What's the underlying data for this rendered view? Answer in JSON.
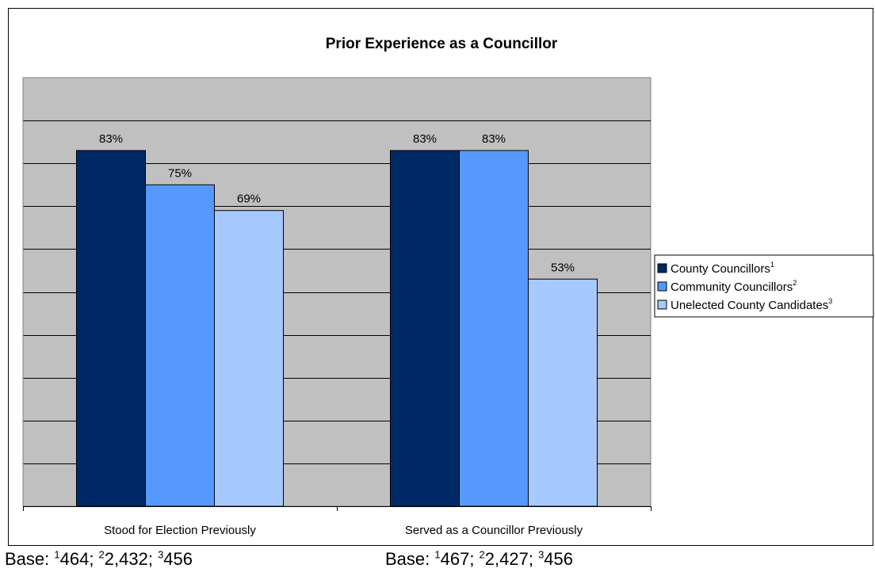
{
  "chart_data": {
    "type": "bar",
    "title": "Prior Experience as a Councillor",
    "categories": [
      "Stood for Election Previously",
      "Served as a Councillor Previously"
    ],
    "series": [
      {
        "name": "County Councillors",
        "superscript": "1",
        "color": "#002A66",
        "values": [
          83,
          83
        ],
        "labels": [
          "83%",
          "83%"
        ]
      },
      {
        "name": "Community Councillors",
        "superscript": "2",
        "color": "#5599FF",
        "values": [
          75,
          83
        ],
        "labels": [
          "75%",
          "83%"
        ]
      },
      {
        "name": "Unelected County Candidates",
        "superscript": "3",
        "color": "#A6C9FF",
        "values": [
          69,
          53
        ],
        "labels": [
          "69%",
          "53%"
        ]
      }
    ],
    "ylim": [
      0,
      100
    ],
    "grid": true,
    "plot_background": "#C0C0C0",
    "legend_position": "right"
  },
  "base_notes": [
    {
      "prefix": "Base: ",
      "items": [
        {
          "sup": "1",
          "value": "464"
        },
        {
          "sup": "2",
          "value": "2,432"
        },
        {
          "sup": "3",
          "value": "456"
        }
      ]
    },
    {
      "prefix": "Base: ",
      "items": [
        {
          "sup": "1",
          "value": "467"
        },
        {
          "sup": "2",
          "value": "2,427"
        },
        {
          "sup": "3",
          "value": "456"
        }
      ]
    }
  ]
}
